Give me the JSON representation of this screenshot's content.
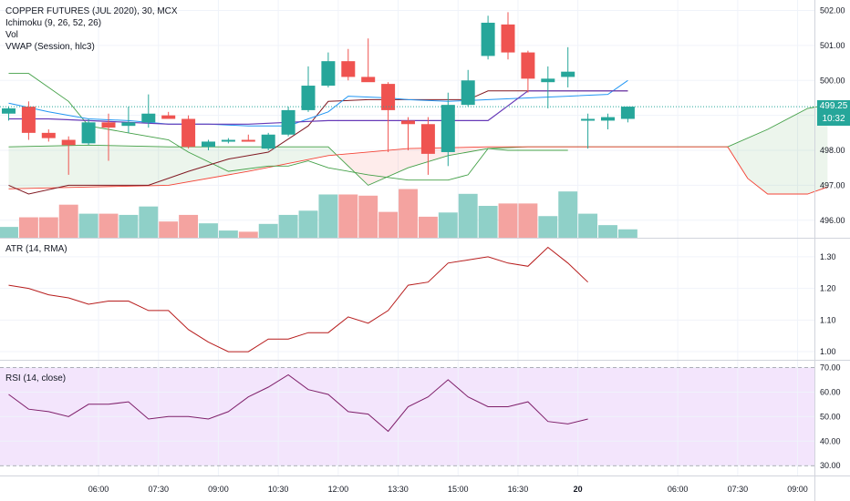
{
  "header": {
    "symbol_line": "COPPER FUTURES (JUL 2020), 30, MCX",
    "indicators": [
      "Ichimoku (9, 26, 52, 26)",
      "Vol",
      "VWAP (Session, hlc3)"
    ]
  },
  "price_tags": {
    "last_price": "499.25",
    "countdown": "10:32"
  },
  "colors": {
    "up": "#26a69a",
    "down": "#ef5350",
    "vol_up": "#8fd0c8",
    "vol_down": "#f4a3a0",
    "conversion": "#2196f3",
    "base": "#801922",
    "lagging": "#43a047",
    "span_a": "#43a047",
    "span_b": "#f44336",
    "vwap": "#673ab7",
    "atr": "#b71c1c",
    "rsi": "#7e1f6a",
    "rsi_band": "#f3e5fc"
  },
  "chart_data": [
    {
      "type": "candlestick",
      "title": "COPPER FUTURES (JUL 2020), 30, MCX",
      "ylim": [
        495.5,
        502.3
      ],
      "y_ticks": [
        496.0,
        497.0,
        498.0,
        499.0,
        500.0,
        501.0,
        502.0
      ],
      "x_ticks": [
        {
          "label": "06:00",
          "bar": 4.5
        },
        {
          "label": "07:30",
          "bar": 7.5
        },
        {
          "label": "09:00",
          "bar": 10.5
        },
        {
          "label": "10:30",
          "bar": 13.5
        },
        {
          "label": "12:00",
          "bar": 16.5
        },
        {
          "label": "13:30",
          "bar": 19.5
        },
        {
          "label": "15:00",
          "bar": 22.5
        },
        {
          "label": "16:30",
          "bar": 25.5
        },
        {
          "label": "20",
          "bar": 28.5
        },
        {
          "label": "06:00",
          "bar": 33.5
        },
        {
          "label": "07:30",
          "bar": 36.5
        },
        {
          "label": "09:00",
          "bar": 39.5
        }
      ],
      "bars_total": 41,
      "candles": [
        {
          "o": 499.05,
          "h": 499.25,
          "l": 498.85,
          "c": 499.2
        },
        {
          "o": 499.25,
          "h": 499.4,
          "l": 498.3,
          "c": 498.5
        },
        {
          "o": 498.5,
          "h": 498.6,
          "l": 498.25,
          "c": 498.35
        },
        {
          "o": 498.3,
          "h": 498.4,
          "l": 497.3,
          "c": 498.15
        },
        {
          "o": 498.2,
          "h": 498.9,
          "l": 498.15,
          "c": 498.8
        },
        {
          "o": 498.8,
          "h": 499.05,
          "l": 497.7,
          "c": 498.65
        },
        {
          "o": 498.7,
          "h": 499.25,
          "l": 498.5,
          "c": 498.8
        },
        {
          "o": 498.8,
          "h": 499.6,
          "l": 498.65,
          "c": 499.05
        },
        {
          "o": 499.0,
          "h": 499.1,
          "l": 498.9,
          "c": 498.9
        },
        {
          "o": 498.9,
          "h": 499.0,
          "l": 498.05,
          "c": 498.1
        },
        {
          "o": 498.1,
          "h": 498.3,
          "l": 498.0,
          "c": 498.25
        },
        {
          "o": 498.25,
          "h": 498.35,
          "l": 498.2,
          "c": 498.3
        },
        {
          "o": 498.3,
          "h": 498.45,
          "l": 498.25,
          "c": 498.25
        },
        {
          "o": 498.05,
          "h": 498.5,
          "l": 498.0,
          "c": 498.45
        },
        {
          "o": 498.45,
          "h": 499.25,
          "l": 498.4,
          "c": 499.15
        },
        {
          "o": 499.15,
          "h": 500.4,
          "l": 499.1,
          "c": 499.85
        },
        {
          "o": 499.85,
          "h": 500.8,
          "l": 499.8,
          "c": 500.55
        },
        {
          "o": 500.55,
          "h": 500.9,
          "l": 500.0,
          "c": 500.1
        },
        {
          "o": 500.1,
          "h": 501.2,
          "l": 500.0,
          "c": 499.95
        },
        {
          "o": 499.9,
          "h": 499.95,
          "l": 497.95,
          "c": 499.15
        },
        {
          "o": 498.85,
          "h": 498.95,
          "l": 498.0,
          "c": 498.75
        },
        {
          "o": 498.75,
          "h": 498.95,
          "l": 497.3,
          "c": 497.9
        },
        {
          "o": 497.95,
          "h": 499.65,
          "l": 497.55,
          "c": 499.3
        },
        {
          "o": 499.3,
          "h": 500.3,
          "l": 499.25,
          "c": 500.0
        },
        {
          "o": 500.7,
          "h": 501.85,
          "l": 500.6,
          "c": 501.65
        },
        {
          "o": 501.6,
          "h": 501.95,
          "l": 500.6,
          "c": 500.8
        },
        {
          "o": 500.8,
          "h": 500.85,
          "l": 499.65,
          "c": 500.05
        },
        {
          "o": 499.95,
          "h": 500.4,
          "l": 499.2,
          "c": 500.05
        },
        {
          "o": 500.1,
          "h": 500.95,
          "l": 499.8,
          "c": 500.25
        },
        {
          "o": 498.9,
          "h": 499.05,
          "l": 498.05,
          "c": 498.9
        },
        {
          "o": 498.85,
          "h": 499.05,
          "l": 498.6,
          "c": 498.95
        },
        {
          "o": 498.9,
          "h": 499.25,
          "l": 498.8,
          "c": 499.25
        }
      ],
      "volume": [
        18,
        34,
        34,
        55,
        40,
        40,
        38,
        52,
        27,
        38,
        24,
        12,
        10,
        23,
        38,
        45,
        72,
        72,
        70,
        43,
        81,
        35,
        42,
        73,
        53,
        57,
        57,
        36,
        77,
        40,
        21,
        14
      ],
      "volume_max": 100,
      "conversion_line": {
        "x": [
          0,
          2,
          4,
          6,
          8,
          10,
          12,
          14,
          16,
          17,
          19,
          20,
          22,
          24,
          26,
          28,
          30,
          31
        ],
        "y": [
          499.35,
          499.1,
          498.9,
          498.85,
          498.75,
          498.75,
          498.7,
          498.7,
          499.1,
          499.55,
          499.5,
          499.45,
          499.4,
          499.45,
          499.5,
          499.55,
          499.6,
          500.0
        ]
      },
      "base_line": {
        "x": [
          0,
          1,
          3,
          5,
          7,
          9,
          11,
          13,
          15,
          16,
          18,
          20,
          22,
          23,
          24,
          26,
          28,
          30,
          31
        ],
        "y": [
          497.0,
          496.75,
          497.0,
          497.0,
          497.0,
          497.4,
          497.75,
          497.95,
          498.7,
          499.4,
          499.45,
          499.45,
          499.45,
          499.45,
          499.7,
          499.7,
          499.7,
          499.7,
          499.7
        ]
      },
      "lagging_span": {
        "x": [
          0,
          1,
          3,
          4,
          6,
          8,
          9,
          11,
          13,
          14,
          15,
          16,
          18,
          20,
          22,
          23,
          24,
          25,
          27,
          28
        ],
        "y": [
          500.2,
          500.2,
          499.4,
          498.7,
          498.5,
          498.3,
          497.95,
          497.4,
          497.55,
          497.55,
          497.7,
          497.5,
          497.3,
          497.15,
          497.15,
          497.3,
          498.05,
          498.0,
          498.0,
          498.0
        ]
      },
      "span_a": {
        "x": [
          0,
          4,
          8,
          12,
          16,
          18,
          20,
          22,
          24,
          26,
          30,
          34,
          36,
          38,
          40,
          41
        ],
        "y": [
          498.1,
          498.15,
          498.1,
          498.1,
          498.1,
          497.0,
          497.5,
          497.85,
          498.05,
          498.1,
          498.1,
          498.1,
          498.1,
          498.6,
          499.2,
          499.3
        ]
      },
      "span_b": {
        "x": [
          0,
          4,
          8,
          12,
          16,
          20,
          24,
          26,
          30,
          34,
          36,
          37,
          38,
          40,
          41
        ],
        "y": [
          496.9,
          496.95,
          497.0,
          497.4,
          497.85,
          498.05,
          498.1,
          498.1,
          498.1,
          498.1,
          498.1,
          497.2,
          496.75,
          496.75,
          496.95
        ]
      },
      "vwap": {
        "x": [
          0,
          2,
          4,
          6,
          8,
          10,
          12,
          14,
          16,
          18,
          20,
          22,
          24,
          26,
          28,
          30,
          31
        ],
        "y": [
          498.9,
          498.9,
          498.85,
          498.8,
          498.75,
          498.75,
          498.75,
          498.8,
          498.85,
          498.85,
          498.85,
          498.85,
          498.85,
          499.7,
          499.7,
          499.7,
          499.7
        ]
      }
    },
    {
      "type": "line",
      "title": "ATR (14, RMA)",
      "ylim": [
        0.98,
        1.34
      ],
      "y_ticks": [
        1.0,
        1.1,
        1.2,
        1.3
      ],
      "series": [
        {
          "values": [
            1.21,
            1.2,
            1.18,
            1.17,
            1.15,
            1.16,
            1.16,
            1.13,
            1.13,
            1.07,
            1.03,
            1.0,
            1.0,
            1.04,
            1.04,
            1.06,
            1.06,
            1.11,
            1.09,
            1.13,
            1.21,
            1.22,
            1.28,
            1.29,
            1.3,
            1.28,
            1.27,
            1.33,
            1.28,
            1.22
          ]
        }
      ]
    },
    {
      "type": "line",
      "title": "RSI (14, close)",
      "ylim": [
        26,
        72
      ],
      "y_ticks": [
        30.0,
        40.0,
        50.0,
        60.0,
        70.0
      ],
      "band": [
        30,
        70
      ],
      "series": [
        {
          "values": [
            59,
            53,
            52,
            50,
            55,
            55,
            56,
            49,
            50,
            50,
            49,
            52,
            58,
            62,
            67,
            61,
            59,
            52,
            51,
            44,
            54,
            58,
            65,
            58,
            54,
            54,
            56,
            48,
            47,
            49
          ]
        }
      ]
    }
  ]
}
